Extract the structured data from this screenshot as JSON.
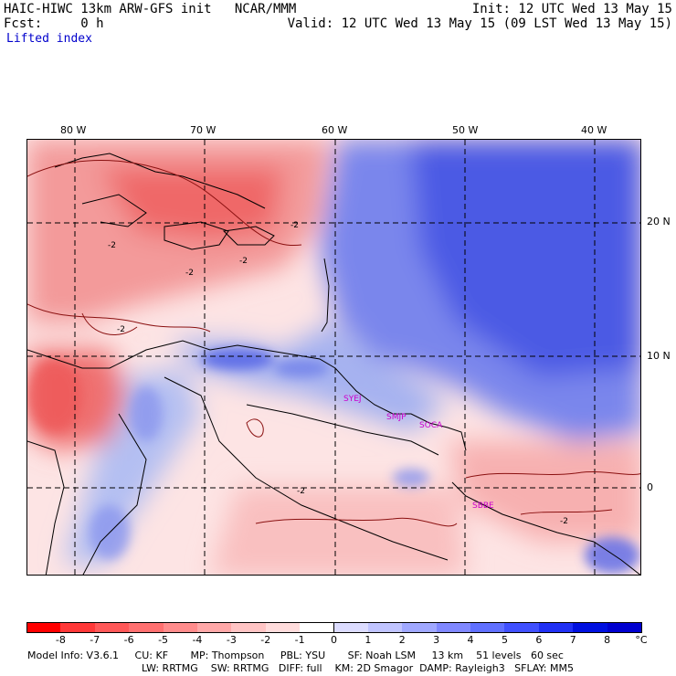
{
  "header": {
    "left_line1": "HAIC-HIWC 13km ARW-GFS init   NCAR/MMM",
    "left_line2": "Fcst:     0 h",
    "field": "Lifted index",
    "right_line1": "Init: 12 UTC Wed 13 May 15",
    "right_line2": "Valid: 12 UTC Wed 13 May 15 (09 LST Wed 13 May 15)"
  },
  "map": {
    "lon_labels": [
      "80 W",
      "70 W",
      "60 W",
      "50 W",
      "40 W"
    ],
    "lat_labels": [
      "20 N",
      "10 N",
      "0"
    ],
    "contour_label": "-2",
    "sites": [
      "SYEJ",
      "SMJP",
      "SOCA",
      "SBBE"
    ],
    "colors": {
      "very_negative": "#e83030",
      "negative": "#f48080",
      "slightly_negative": "#fbc8c8",
      "neutral": "#fde8e8",
      "positive": "#a8b8f0",
      "very_positive": "#3a48e0",
      "land_outline": "#000000",
      "grid": "#000000"
    }
  },
  "colorbar": {
    "ticks": [
      "-8",
      "-7",
      "-6",
      "-5",
      "-4",
      "-3",
      "-2",
      "-1",
      "0",
      "1",
      "2",
      "3",
      "4",
      "5",
      "6",
      "7",
      "8"
    ],
    "unit": "°C",
    "colors": [
      "#ff0000",
      "#ff3838",
      "#ff5858",
      "#ff7070",
      "#ff8c8c",
      "#ffa8a8",
      "#ffc4c4",
      "#ffdcdc",
      "#ffffff",
      "#dcdcff",
      "#c0c4ff",
      "#a0a8ff",
      "#8088ff",
      "#6070ff",
      "#4050ff",
      "#2030f4",
      "#0010e0",
      "#0000d0"
    ]
  },
  "footer": {
    "line1": "Model Info: V3.6.1     CU: KF       MP: Thompson     PBL: YSU       SF: Noah LSM     13 km    51 levels   60 sec",
    "line2": "LW: RRTMG    SW: RRTMG   DIFF: full    KM: 2D Smagor  DAMP: Rayleigh3   SFLAY: MM5"
  }
}
